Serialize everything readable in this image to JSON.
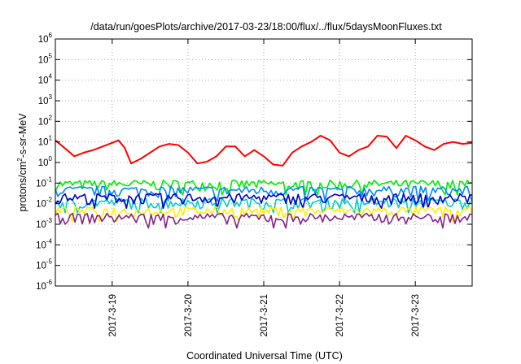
{
  "chart_data": {
    "type": "line",
    "title": "/data/run/goesPlots/archive/2017-03-23/18:00/flux/../flux/5daysMoonFluxes.txt",
    "xlabel": "Coordinated Universal Time (UTC)",
    "ylabel": {
      "prefix": "protons/cm",
      "sup": "2",
      "suffix": "-s-sr-MeV"
    },
    "yscale": "log",
    "ylim": [
      1e-06,
      1000000.0
    ],
    "xlim": [
      "2017-03-18 06:00",
      "2017-03-23 18:00"
    ],
    "grid": true,
    "y_ticks": [
      {
        "value": 1e-06,
        "base": "10",
        "exp": "-6"
      },
      {
        "value": 1e-05,
        "base": "10",
        "exp": "-5"
      },
      {
        "value": 0.0001,
        "base": "10",
        "exp": "-4"
      },
      {
        "value": 0.001,
        "base": "10",
        "exp": "-3"
      },
      {
        "value": 0.01,
        "base": "10",
        "exp": "-2"
      },
      {
        "value": 0.1,
        "base": "10",
        "exp": "-1"
      },
      {
        "value": 1.0,
        "base": "10",
        "exp": "0"
      },
      {
        "value": 10.0,
        "base": "10",
        "exp": "1"
      },
      {
        "value": 100.0,
        "base": "10",
        "exp": "2"
      },
      {
        "value": 1000.0,
        "base": "10",
        "exp": "3"
      },
      {
        "value": 10000.0,
        "base": "10",
        "exp": "4"
      },
      {
        "value": 100000.0,
        "base": "10",
        "exp": "5"
      },
      {
        "value": 1000000.0,
        "base": "10",
        "exp": "6"
      }
    ],
    "x_ticks": [
      "2017-3-19",
      "2017-3-20",
      "2017-3-21",
      "2017-3-22",
      "2017-3-23"
    ],
    "series": [
      {
        "color": "#ff0000",
        "x": [
          "2017-03-18 06:00",
          "2017-03-18 09:00",
          "2017-03-18 12:00",
          "2017-03-18 15:00",
          "2017-03-18 18:00",
          "2017-03-18 21:00",
          "2017-03-19 00:00",
          "2017-03-19 02:00",
          "2017-03-19 04:00",
          "2017-03-19 06:00",
          "2017-03-19 09:00",
          "2017-03-19 12:00",
          "2017-03-19 15:00",
          "2017-03-19 18:00",
          "2017-03-19 21:00",
          "2017-03-20 00:00",
          "2017-03-20 03:00",
          "2017-03-20 06:00",
          "2017-03-20 09:00",
          "2017-03-20 12:00",
          "2017-03-20 15:00",
          "2017-03-20 18:00",
          "2017-03-20 21:00",
          "2017-03-21 00:00",
          "2017-03-21 03:00",
          "2017-03-21 06:00",
          "2017-03-21 09:00",
          "2017-03-21 12:00",
          "2017-03-21 15:00",
          "2017-03-21 18:00",
          "2017-03-21 21:00",
          "2017-03-22 00:00",
          "2017-03-22 03:00",
          "2017-03-22 06:00",
          "2017-03-22 09:00",
          "2017-03-22 12:00",
          "2017-03-22 15:00",
          "2017-03-22 18:00",
          "2017-03-22 21:00",
          "2017-03-23 00:00",
          "2017-03-23 03:00",
          "2017-03-23 06:00",
          "2017-03-23 09:00",
          "2017-03-23 12:00",
          "2017-03-23 15:00",
          "2017-03-23 18:00"
        ],
        "values": [
          12,
          5,
          2,
          3,
          4,
          6,
          9,
          12,
          5,
          0.9,
          1.5,
          3,
          6,
          8,
          7,
          3,
          0.9,
          1.1,
          2,
          6,
          6,
          2,
          4,
          2,
          0.8,
          0.7,
          3,
          6,
          10,
          20,
          12,
          3,
          2,
          4,
          6,
          20,
          18,
          5,
          20,
          12,
          6,
          4,
          8,
          10,
          8,
          9
        ]
      },
      {
        "color": "#00ee00",
        "x": [
          "2017-03-18 06:00",
          "2017-03-23 18:00"
        ],
        "values": [
          0.09,
          0.09
        ]
      },
      {
        "color": "#0088ff",
        "x": [
          "2017-03-18 06:00",
          "2017-03-23 18:00"
        ],
        "values": [
          0.045,
          0.045
        ]
      },
      {
        "color": "#00cccc",
        "x": [
          "2017-03-18 06:00",
          "2017-03-23 18:00"
        ],
        "values": [
          0.012,
          0.012
        ]
      },
      {
        "color": "#0000cc",
        "x": [
          "2017-03-18 06:00",
          "2017-03-23 18:00"
        ],
        "values": [
          0.02,
          0.02
        ]
      },
      {
        "color": "#ffee00",
        "x": [
          "2017-03-18 06:00",
          "2017-03-23 18:00"
        ],
        "values": [
          0.0045,
          0.0045
        ]
      },
      {
        "color": "#882288",
        "x": [
          "2017-03-18 06:00",
          "2017-03-23 18:00"
        ],
        "values": [
          0.0022,
          0.0022
        ]
      }
    ]
  }
}
